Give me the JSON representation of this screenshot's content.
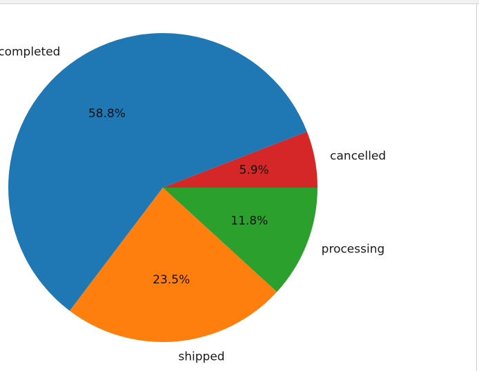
{
  "chart_data": {
    "type": "pie",
    "categories": [
      "cancelled",
      "completed",
      "shipped",
      "processing"
    ],
    "values": [
      5.9,
      58.8,
      23.5,
      11.8
    ],
    "value_labels": [
      "5.9%",
      "58.8%",
      "23.5%",
      "11.8%"
    ],
    "colors": [
      "#d62728",
      "#1f77b4",
      "#ff7f0e",
      "#2ca02c"
    ],
    "start_angle_deg": 0,
    "direction": "counterclockwise",
    "title": "",
    "legend": "none"
  }
}
